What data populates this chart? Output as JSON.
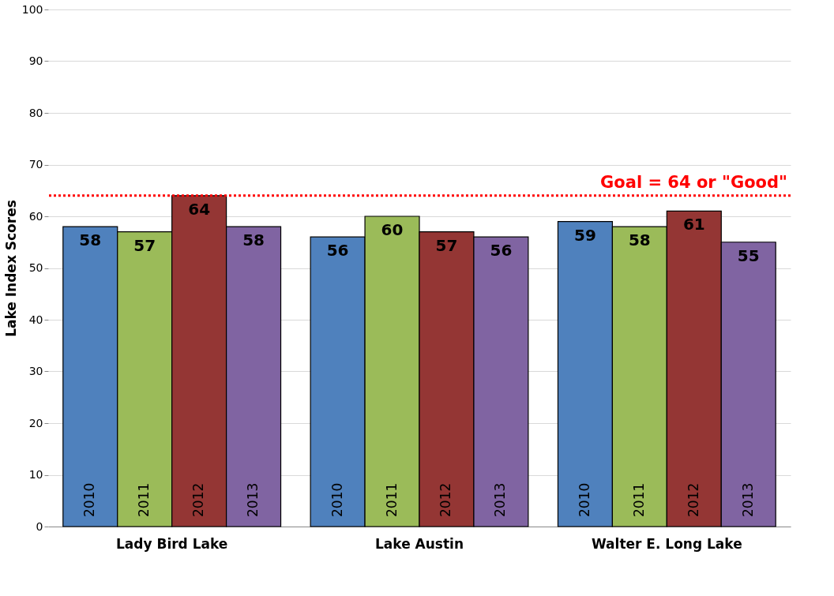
{
  "chart_data": {
    "type": "bar",
    "ylabel": "Lake Index Scores",
    "categories": [
      "Lady Bird Lake",
      "Lake Austin",
      "Walter E. Long Lake"
    ],
    "series": [
      {
        "name": "2010",
        "color": "#4f81bd",
        "values": [
          58,
          56,
          59
        ]
      },
      {
        "name": "2011",
        "color": "#9bbb59",
        "values": [
          57,
          60,
          58
        ]
      },
      {
        "name": "2012",
        "color": "#943634",
        "values": [
          64,
          57,
          61
        ]
      },
      {
        "name": "2013",
        "color": "#8064a2",
        "values": [
          58,
          56,
          55
        ]
      }
    ],
    "ylim": [
      0,
      100
    ],
    "yticks": [
      0,
      10,
      20,
      30,
      40,
      50,
      60,
      70,
      80,
      90,
      100
    ],
    "grid": "y",
    "legend": false,
    "data_labels": true,
    "ref_lines": [
      {
        "axis": "y",
        "value": 64,
        "label": "Goal = 64 or \"Good\"",
        "color": "#ff0000",
        "line_style": "dotted"
      }
    ]
  }
}
